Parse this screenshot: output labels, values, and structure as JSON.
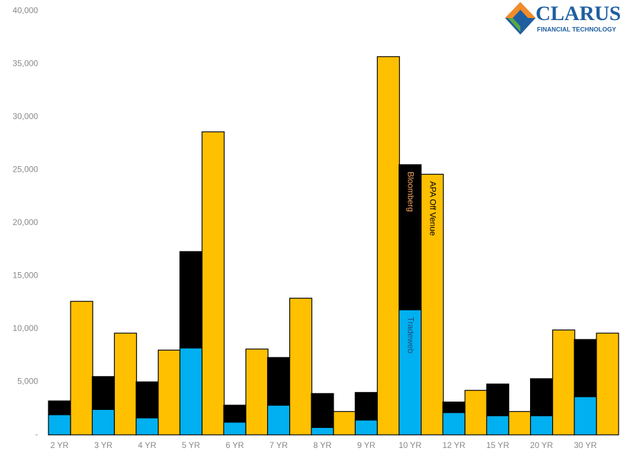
{
  "logo": {
    "name": "CLARUS",
    "tagline": "FINANCIAL TECHNOLOGY"
  },
  "chart_data": {
    "type": "bar",
    "stacked": true,
    "categories": [
      "2 YR",
      "3 YR",
      "4 YR",
      "5 YR",
      "6 YR",
      "7 YR",
      "8 YR",
      "9 YR",
      "10 YR",
      "12 YR",
      "15 YR",
      "20 YR",
      "30 YR"
    ],
    "series": [
      {
        "name": "Tradeweb",
        "color": "#00b0f0",
        "stack": 1,
        "label_color": "#1f4e79",
        "values": [
          1900,
          2400,
          1600,
          8200,
          1200,
          2800,
          700,
          1400,
          11800,
          2100,
          1800,
          1800,
          3600
        ]
      },
      {
        "name": "Bloomberg",
        "color": "#000000",
        "stack": 1,
        "label_color": "#f4a460",
        "values": [
          1300,
          3100,
          3400,
          9100,
          1600,
          4500,
          3200,
          2600,
          13700,
          1000,
          3000,
          3500,
          5400
        ]
      },
      {
        "name": "APA Off Venue",
        "color": "#ffc000",
        "stack": 2,
        "label_color": "#000000",
        "values": [
          12600,
          9600,
          8000,
          28600,
          8100,
          12900,
          2200,
          35700,
          24600,
          4200,
          2200,
          9900,
          9600
        ]
      }
    ],
    "ylim": [
      0,
      40000
    ],
    "yticks": [
      {
        "value": 0,
        "label": "-"
      },
      {
        "value": 5000,
        "label": "5,000"
      },
      {
        "value": 10000,
        "label": "10,000"
      },
      {
        "value": 15000,
        "label": "15,000"
      },
      {
        "value": 20000,
        "label": "20,000"
      },
      {
        "value": 25000,
        "label": "25,000"
      },
      {
        "value": 30000,
        "label": "30,000"
      },
      {
        "value": 35000,
        "label": "35,000"
      },
      {
        "value": 40000,
        "label": "40,000"
      }
    ],
    "grid": false
  }
}
